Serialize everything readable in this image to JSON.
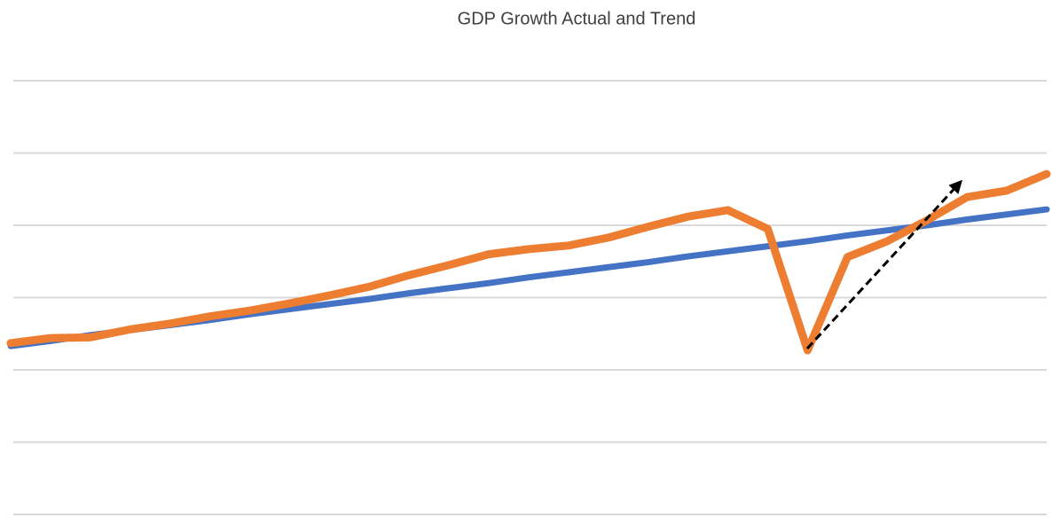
{
  "chart_data": {
    "type": "line",
    "title": "GDP Growth  Actual and Trend",
    "series": [
      {
        "color": "#4472c4",
        "values": [
          2.33,
          2.4,
          2.48,
          2.55,
          2.62,
          2.69,
          2.77,
          2.84,
          2.91,
          2.98,
          3.06,
          3.13,
          3.2,
          3.28,
          3.35,
          3.42,
          3.49,
          3.57,
          3.64,
          3.71,
          3.78,
          3.86,
          3.93,
          4.0,
          4.08,
          4.15,
          4.22
        ]
      },
      {
        "color": "#ed7d31",
        "values": [
          2.37,
          2.44,
          2.45,
          2.56,
          2.64,
          2.74,
          2.82,
          2.92,
          3.03,
          3.15,
          3.31,
          3.45,
          3.6,
          3.67,
          3.72,
          3.83,
          3.98,
          4.12,
          4.21,
          3.95,
          2.27,
          3.56,
          3.78,
          4.07,
          4.39,
          4.48,
          4.71
        ]
      }
    ],
    "ylim": [
      0,
      6
    ],
    "yticks": [
      0,
      1,
      2,
      3,
      4,
      5,
      6
    ],
    "grid": true
  }
}
